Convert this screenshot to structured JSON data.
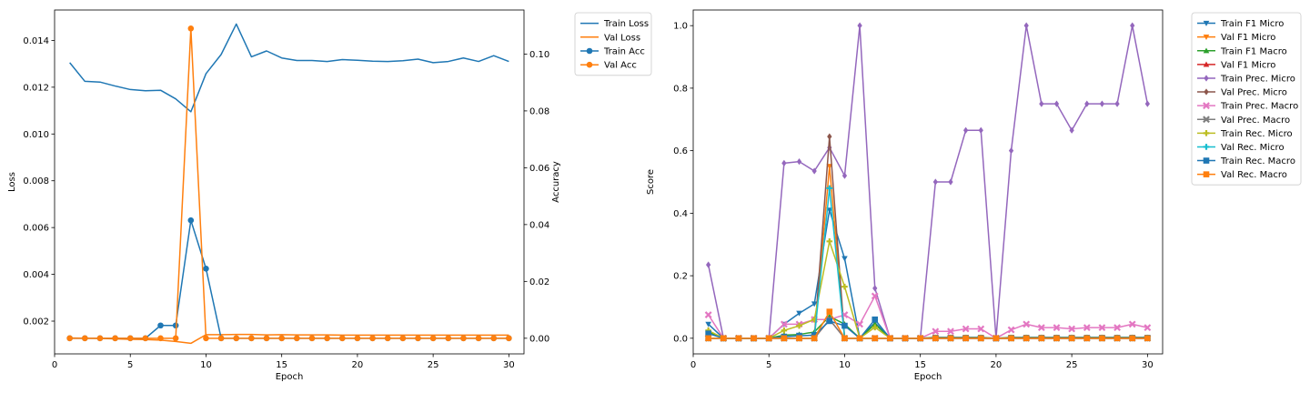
{
  "chart_data": [
    {
      "type": "line",
      "x": [
        1,
        2,
        3,
        4,
        5,
        6,
        7,
        8,
        9,
        10,
        11,
        12,
        13,
        14,
        15,
        16,
        17,
        18,
        19,
        20,
        21,
        22,
        23,
        24,
        25,
        26,
        27,
        28,
        29,
        30
      ],
      "xlabel": "Epoch",
      "ylabel": "Loss",
      "y2label": "Accuracy",
      "xlim": [
        0,
        31
      ],
      "ylim": [
        0.0006,
        0.0153
      ],
      "y2lim": [
        -0.0055,
        0.1155
      ],
      "xticks": [
        "0",
        "5",
        "10",
        "15",
        "20",
        "25",
        "30"
      ],
      "yticks": [
        "0.002",
        "0.004",
        "0.006",
        "0.008",
        "0.010",
        "0.012",
        "0.014"
      ],
      "y2ticks": [
        "0.00",
        "0.02",
        "0.04",
        "0.06",
        "0.08",
        "0.10"
      ],
      "grid": false,
      "legend_position": "outside-top-right",
      "series": [
        {
          "name": "Train Loss",
          "axis": "left",
          "color": "#1f77b4",
          "marker": "none",
          "values": [
            0.01305,
            0.01225,
            0.01222,
            0.01205,
            0.0119,
            0.01185,
            0.01187,
            0.0115,
            0.01095,
            0.01258,
            0.0134,
            0.0147,
            0.0133,
            0.01355,
            0.01325,
            0.01314,
            0.01314,
            0.0131,
            0.01318,
            0.01315,
            0.01311,
            0.0131,
            0.01313,
            0.0132,
            0.01305,
            0.0131,
            0.01325,
            0.0131,
            0.01335,
            0.0131
          ]
        },
        {
          "name": "Val Loss",
          "axis": "left",
          "color": "#ff7f0e",
          "marker": "none",
          "values": [
            0.00128,
            0.00127,
            0.00126,
            0.00124,
            0.00122,
            0.00121,
            0.00119,
            0.00113,
            0.00105,
            0.00142,
            0.00142,
            0.00143,
            0.00143,
            0.00141,
            0.00142,
            0.00141,
            0.00141,
            0.00141,
            0.0014,
            0.0014,
            0.0014,
            0.0014,
            0.0014,
            0.0014,
            0.0014,
            0.0014,
            0.0014,
            0.0014,
            0.0014,
            0.0014
          ]
        },
        {
          "name": "Train Acc",
          "axis": "right",
          "color": "#1f77b4",
          "marker": "circle",
          "values": [
            0,
            0,
            0,
            0,
            0,
            0,
            0.0045,
            0.0045,
            0.0415,
            0.0245,
            0,
            0,
            0,
            0,
            0,
            0,
            0,
            0,
            0,
            0,
            0,
            0,
            0,
            0,
            0,
            0,
            0,
            0,
            0,
            0
          ]
        },
        {
          "name": "Val Acc",
          "axis": "right",
          "color": "#ff7f0e",
          "marker": "circle",
          "values": [
            0,
            0,
            0,
            0,
            0,
            0,
            0,
            0,
            0.109,
            0,
            0,
            0,
            0,
            0,
            0,
            0,
            0,
            0,
            0,
            0,
            0,
            0,
            0,
            0,
            0,
            0,
            0,
            0,
            0,
            0
          ]
        }
      ]
    },
    {
      "type": "line",
      "x": [
        1,
        2,
        3,
        4,
        5,
        6,
        7,
        8,
        9,
        10,
        11,
        12,
        13,
        14,
        15,
        16,
        17,
        18,
        19,
        20,
        21,
        22,
        23,
        24,
        25,
        26,
        27,
        28,
        29,
        30
      ],
      "xlabel": "Epoch",
      "ylabel": "Score",
      "xlim": [
        0,
        31
      ],
      "ylim": [
        -0.05,
        1.05
      ],
      "xticks": [
        "0",
        "5",
        "10",
        "15",
        "20",
        "25",
        "30"
      ],
      "yticks": [
        "0.0",
        "0.2",
        "0.4",
        "0.6",
        "0.8",
        "1.0"
      ],
      "grid": false,
      "legend_position": "outside-top-right",
      "series": [
        {
          "name": "Train F1 Micro",
          "color": "#1f77b4",
          "marker": "triangle-down",
          "values": [
            0.045,
            0,
            0,
            0,
            0,
            0.045,
            0.08,
            0.11,
            0.41,
            0.255,
            0,
            0.05,
            0,
            0,
            0,
            0.003,
            0.003,
            0.003,
            0.003,
            0,
            0.003,
            0.003,
            0.003,
            0.003,
            0.003,
            0.003,
            0.003,
            0.003,
            0.003,
            0.003
          ]
        },
        {
          "name": "Val F1 Micro",
          "color": "#ff7f0e",
          "marker": "triangle-down",
          "values": [
            0,
            0,
            0,
            0,
            0,
            0,
            0,
            0,
            0.55,
            0,
            0,
            0,
            0,
            0,
            0,
            0,
            0,
            0,
            0,
            0,
            0,
            0,
            0,
            0,
            0,
            0,
            0,
            0,
            0,
            0
          ]
        },
        {
          "name": "Train F1 Macro",
          "color": "#2ca02c",
          "marker": "triangle-up",
          "values": [
            0.02,
            0,
            0,
            0,
            0,
            0.01,
            0.012,
            0.02,
            0.07,
            0.045,
            0,
            0.045,
            0,
            0,
            0,
            0.001,
            0.001,
            0.001,
            0.001,
            0,
            0.001,
            0.001,
            0.001,
            0.001,
            0.001,
            0.001,
            0.001,
            0.001,
            0.001,
            0.001
          ]
        },
        {
          "name": "Val F1 Micro",
          "color": "#d62728",
          "marker": "triangle-up",
          "values": [
            0,
            0,
            0,
            0,
            0,
            0,
            0,
            0,
            0.06,
            0,
            0,
            0,
            0,
            0,
            0,
            0,
            0,
            0,
            0,
            0,
            0,
            0,
            0,
            0,
            0,
            0,
            0,
            0,
            0,
            0
          ]
        },
        {
          "name": "Train Prec. Micro",
          "color": "#9467bd",
          "marker": "diamond",
          "values": [
            0.235,
            0,
            0,
            0,
            0,
            0.56,
            0.565,
            0.535,
            0.61,
            0.52,
            1.0,
            0.16,
            0,
            0,
            0,
            0.5,
            0.5,
            0.665,
            0.665,
            0,
            0.6,
            1.0,
            0.75,
            0.75,
            0.665,
            0.75,
            0.75,
            0.75,
            1.0,
            0.75
          ]
        },
        {
          "name": "Val Prec. Micro",
          "color": "#8c564b",
          "marker": "diamond",
          "values": [
            0,
            0,
            0,
            0,
            0,
            0,
            0,
            0,
            0.645,
            0,
            0,
            0,
            0,
            0,
            0,
            0,
            0,
            0,
            0,
            0,
            0,
            0,
            0,
            0,
            0,
            0,
            0,
            0,
            0,
            0
          ]
        },
        {
          "name": "Train Prec. Macro",
          "color": "#e377c2",
          "marker": "x",
          "values": [
            0.075,
            0,
            0,
            0,
            0,
            0.045,
            0.045,
            0.06,
            0.06,
            0.075,
            0.045,
            0.135,
            0,
            0,
            0,
            0.022,
            0.022,
            0.03,
            0.03,
            0,
            0.027,
            0.045,
            0.034,
            0.034,
            0.03,
            0.034,
            0.034,
            0.034,
            0.045,
            0.034
          ]
        },
        {
          "name": "Val Prec. Macro",
          "color": "#7f7f7f",
          "marker": "x",
          "values": [
            0,
            0,
            0,
            0,
            0,
            0,
            0,
            0,
            0.06,
            0,
            0,
            0,
            0,
            0,
            0,
            0,
            0,
            0,
            0,
            0,
            0,
            0,
            0,
            0,
            0,
            0,
            0,
            0,
            0,
            0
          ]
        },
        {
          "name": "Train Rec. Micro",
          "color": "#bcbd22",
          "marker": "plus",
          "values": [
            0.025,
            0,
            0,
            0,
            0,
            0.025,
            0.04,
            0.06,
            0.31,
            0.165,
            0,
            0.035,
            0,
            0,
            0,
            0.002,
            0.002,
            0.002,
            0.002,
            0,
            0.002,
            0.002,
            0.002,
            0.002,
            0.002,
            0.002,
            0.002,
            0.002,
            0.002,
            0.002
          ]
        },
        {
          "name": "Val Rec. Micro",
          "color": "#17becf",
          "marker": "plus",
          "values": [
            0,
            0,
            0,
            0,
            0,
            0,
            0,
            0,
            0.48,
            0,
            0,
            0,
            0,
            0,
            0,
            0,
            0,
            0,
            0,
            0,
            0,
            0,
            0,
            0,
            0,
            0,
            0,
            0,
            0,
            0
          ]
        },
        {
          "name": "Train Rec. Macro",
          "color": "#1f77b4",
          "marker": "square",
          "values": [
            0.015,
            0,
            0,
            0,
            0,
            0.005,
            0.008,
            0.01,
            0.055,
            0.04,
            0,
            0.06,
            0,
            0,
            0,
            0.001,
            0.001,
            0.001,
            0.001,
            0,
            0.001,
            0.001,
            0.001,
            0.001,
            0.001,
            0.001,
            0.001,
            0.001,
            0.001,
            0.001
          ]
        },
        {
          "name": "Val Rec. Macro",
          "color": "#ff7f0e",
          "marker": "square",
          "values": [
            0,
            0,
            0,
            0,
            0,
            0,
            0,
            0,
            0.085,
            0,
            0,
            0,
            0,
            0,
            0,
            0,
            0,
            0,
            0,
            0,
            0,
            0,
            0,
            0,
            0,
            0,
            0,
            0,
            0,
            0
          ]
        }
      ]
    }
  ]
}
